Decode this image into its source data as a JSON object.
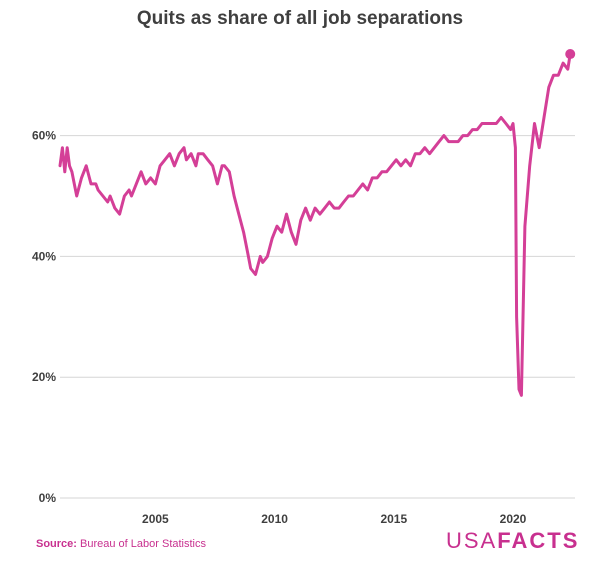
{
  "chart_data": {
    "type": "line",
    "title": "Quits as share of all job separations",
    "xlabel": "",
    "ylabel": "",
    "ylim": [
      0,
      75
    ],
    "xlim": [
      2001.0,
      2022.6
    ],
    "yticks": [
      "0%",
      "20%",
      "40%",
      "60%"
    ],
    "ytick_values": [
      0,
      20,
      40,
      60
    ],
    "xticks": [
      "2005",
      "2010",
      "2015",
      "2020"
    ],
    "xtick_values": [
      2005,
      2010,
      2015,
      2020
    ],
    "grid": "horizontal",
    "color": "#d43f97",
    "series": [
      {
        "values_x": [
          2001.0,
          2001.1,
          2001.2,
          2001.3,
          2001.4,
          2001.5,
          2001.6,
          2001.7,
          2001.9,
          2002.1,
          2002.3,
          2002.5,
          2002.6,
          2002.8,
          2003.0,
          2003.1,
          2003.3,
          2003.5,
          2003.7,
          2003.9,
          2004.0,
          2004.2,
          2004.4,
          2004.6,
          2004.8,
          2005.0,
          2005.2,
          2005.4,
          2005.6,
          2005.8,
          2006.0,
          2006.2,
          2006.3,
          2006.5,
          2006.7,
          2006.8,
          2007.0,
          2007.2,
          2007.4,
          2007.6,
          2007.8,
          2007.9,
          2008.1,
          2008.3,
          2008.5,
          2008.7,
          2008.9,
          2009.0,
          2009.2,
          2009.4,
          2009.5,
          2009.7,
          2009.9,
          2010.1,
          2010.3,
          2010.5,
          2010.7,
          2010.9,
          2011.1,
          2011.3,
          2011.5,
          2011.7,
          2011.9,
          2012.1,
          2012.3,
          2012.5,
          2012.7,
          2012.9,
          2013.1,
          2013.3,
          2013.5,
          2013.7,
          2013.9,
          2014.1,
          2014.3,
          2014.5,
          2014.7,
          2014.9,
          2015.1,
          2015.3,
          2015.5,
          2015.7,
          2015.9,
          2016.1,
          2016.3,
          2016.5,
          2016.7,
          2016.9,
          2017.1,
          2017.3,
          2017.5,
          2017.7,
          2017.9,
          2018.1,
          2018.3,
          2018.5,
          2018.7,
          2018.9,
          2019.1,
          2019.3,
          2019.5,
          2019.7,
          2019.9,
          2020.0,
          2020.1,
          2020.15,
          2020.25,
          2020.35,
          2020.5,
          2020.7,
          2020.9,
          2021.1,
          2021.3,
          2021.5,
          2021.7,
          2021.9,
          2022.1,
          2022.3,
          2022.4
        ],
        "values_y": [
          55,
          58,
          54,
          58,
          55,
          54,
          52,
          50,
          53,
          55,
          52,
          52,
          51,
          50,
          49,
          50,
          48,
          47,
          50,
          51,
          50,
          52,
          54,
          52,
          53,
          52,
          55,
          56,
          57,
          55,
          57,
          58,
          56,
          57,
          55,
          57,
          57,
          56,
          55,
          52,
          55,
          55,
          54,
          50,
          47,
          44,
          40,
          38,
          37,
          40,
          39,
          40,
          43,
          45,
          44,
          47,
          44,
          42,
          46,
          48,
          46,
          48,
          47,
          48,
          49,
          48,
          48,
          49,
          50,
          50,
          51,
          52,
          51,
          53,
          53,
          54,
          54,
          55,
          56,
          55,
          56,
          55,
          57,
          57,
          58,
          57,
          58,
          59,
          60,
          59,
          59,
          59,
          60,
          60,
          61,
          61,
          62,
          62,
          62,
          62,
          63,
          62,
          61,
          62,
          58,
          30,
          18,
          17,
          45,
          55,
          62,
          58,
          63,
          68,
          70,
          70,
          72,
          71,
          73.5
        ]
      }
    ]
  },
  "footer": {
    "source_label": "Source:",
    "source_text": "Bureau of Labor Statistics"
  },
  "logo": {
    "part1": "USA",
    "part2": "FACTS"
  }
}
